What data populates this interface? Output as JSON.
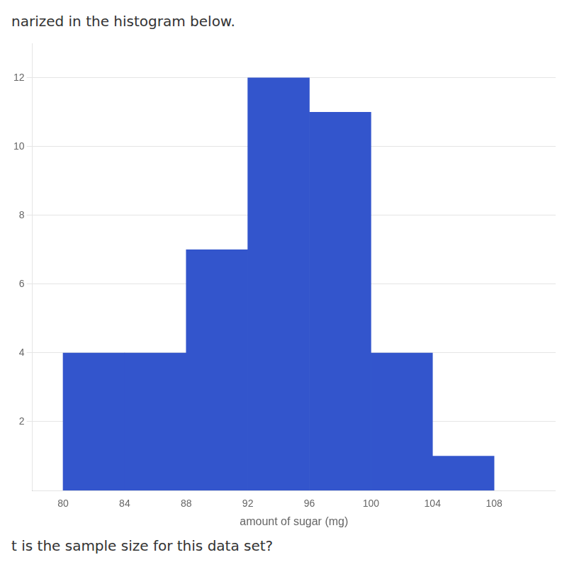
{
  "chart_data": {
    "type": "histogram",
    "bins": [
      80,
      84,
      88,
      92,
      96,
      100,
      104,
      108
    ],
    "values": [
      4,
      4,
      7,
      12,
      11,
      4,
      1
    ],
    "color": "#3355cc",
    "xlabel": "amount of sugar (mg)",
    "xlim": [
      78,
      112
    ],
    "xticks": [
      80,
      84,
      88,
      92,
      96,
      100,
      104,
      108
    ],
    "ylim": [
      0,
      13
    ],
    "yticks": [
      2,
      4,
      6,
      8,
      10,
      12
    ],
    "grid": true,
    "annotations": [
      "narized in the histogram below.",
      "t is the sample size for this data set?"
    ]
  }
}
